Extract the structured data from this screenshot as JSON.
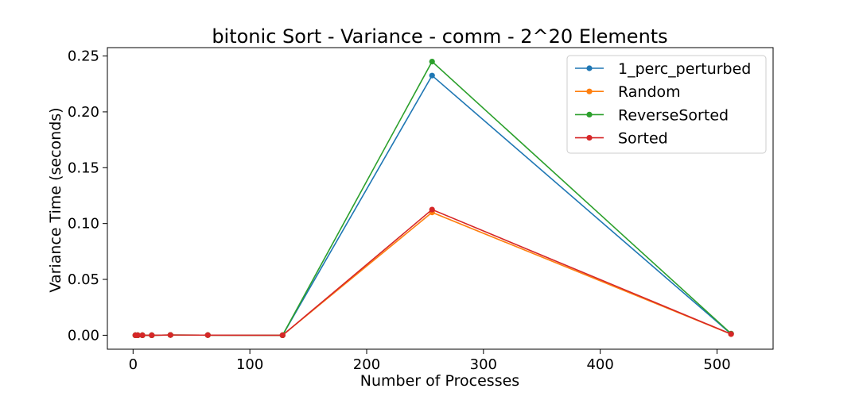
{
  "chart_data": {
    "type": "line",
    "title": "bitonic Sort - Variance - comm - 2^20 Elements",
    "xlabel": "Number of Processes",
    "ylabel": "Variance Time (seconds)",
    "xlim": [
      -22,
      548
    ],
    "ylim": [
      -0.0125,
      0.2575
    ],
    "xticks": [
      0,
      100,
      200,
      300,
      400,
      500
    ],
    "xtick_labels": [
      "0",
      "100",
      "200",
      "300",
      "400",
      "500"
    ],
    "yticks": [
      0.0,
      0.05,
      0.1,
      0.15,
      0.2,
      0.25
    ],
    "ytick_labels": [
      "0.00",
      "0.05",
      "0.10",
      "0.15",
      "0.20",
      "0.25"
    ],
    "grid": false,
    "legend_position": "top-right",
    "x": [
      2,
      4,
      8,
      16,
      32,
      64,
      128,
      256,
      512
    ],
    "series": [
      {
        "name": "1_perc_perturbed",
        "color": "#1f77b4",
        "values": [
          0.0,
          0.0,
          0.0,
          0.0,
          0.0002,
          0.0001,
          0.0,
          0.2325,
          0.0012
        ]
      },
      {
        "name": "Random",
        "color": "#ff7f0e",
        "values": [
          0.0,
          0.0,
          0.0,
          0.0,
          0.0002,
          0.0001,
          0.0,
          0.11,
          0.001
        ]
      },
      {
        "name": "ReverseSorted",
        "color": "#2ca02c",
        "values": [
          0.0,
          0.0,
          0.0,
          0.0,
          0.0002,
          0.0001,
          0.0,
          0.245,
          0.0015
        ]
      },
      {
        "name": "Sorted",
        "color": "#d62728",
        "values": [
          0.0,
          0.0,
          0.0,
          0.0,
          0.0002,
          0.0001,
          0.0,
          0.1125,
          0.0011
        ]
      }
    ]
  }
}
